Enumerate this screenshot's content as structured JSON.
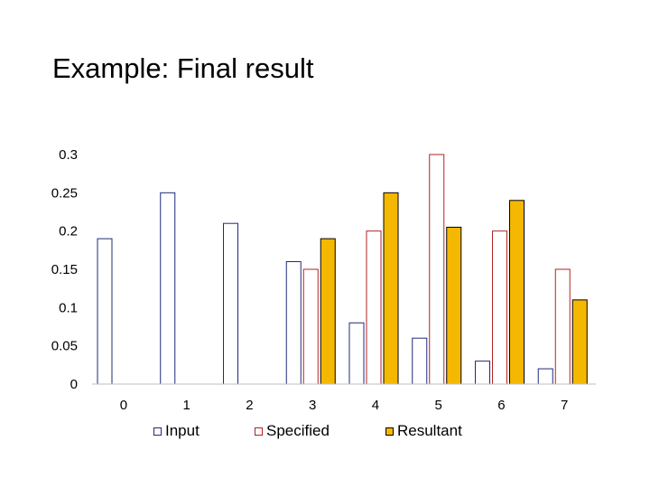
{
  "title": "Example: Final result",
  "chart_data": {
    "type": "bar",
    "categories": [
      "0",
      "1",
      "2",
      "3",
      "4",
      "5",
      "6",
      "7"
    ],
    "series": [
      {
        "name": "Input",
        "values": [
          0.19,
          0.25,
          0.21,
          0.16,
          0.08,
          0.06,
          0.03,
          0.02
        ],
        "fill": "#ffffff",
        "stroke": "#1f2a7a"
      },
      {
        "name": "Specified",
        "values": [
          null,
          null,
          null,
          0.15,
          0.2,
          0.3,
          0.2,
          0.15
        ],
        "fill": "#ffffff",
        "stroke": "#b22222"
      },
      {
        "name": "Resultant",
        "values": [
          null,
          null,
          null,
          0.19,
          0.25,
          0.205,
          0.24,
          0.11
        ],
        "fill": "#f5b800",
        "stroke": "#000000"
      }
    ],
    "y_ticks": [
      "0",
      "0.05",
      "0.1",
      "0.15",
      "0.2",
      "0.25",
      "0.3"
    ],
    "ylim": [
      0,
      0.3
    ],
    "grid": false,
    "legend_position": "bottom"
  }
}
